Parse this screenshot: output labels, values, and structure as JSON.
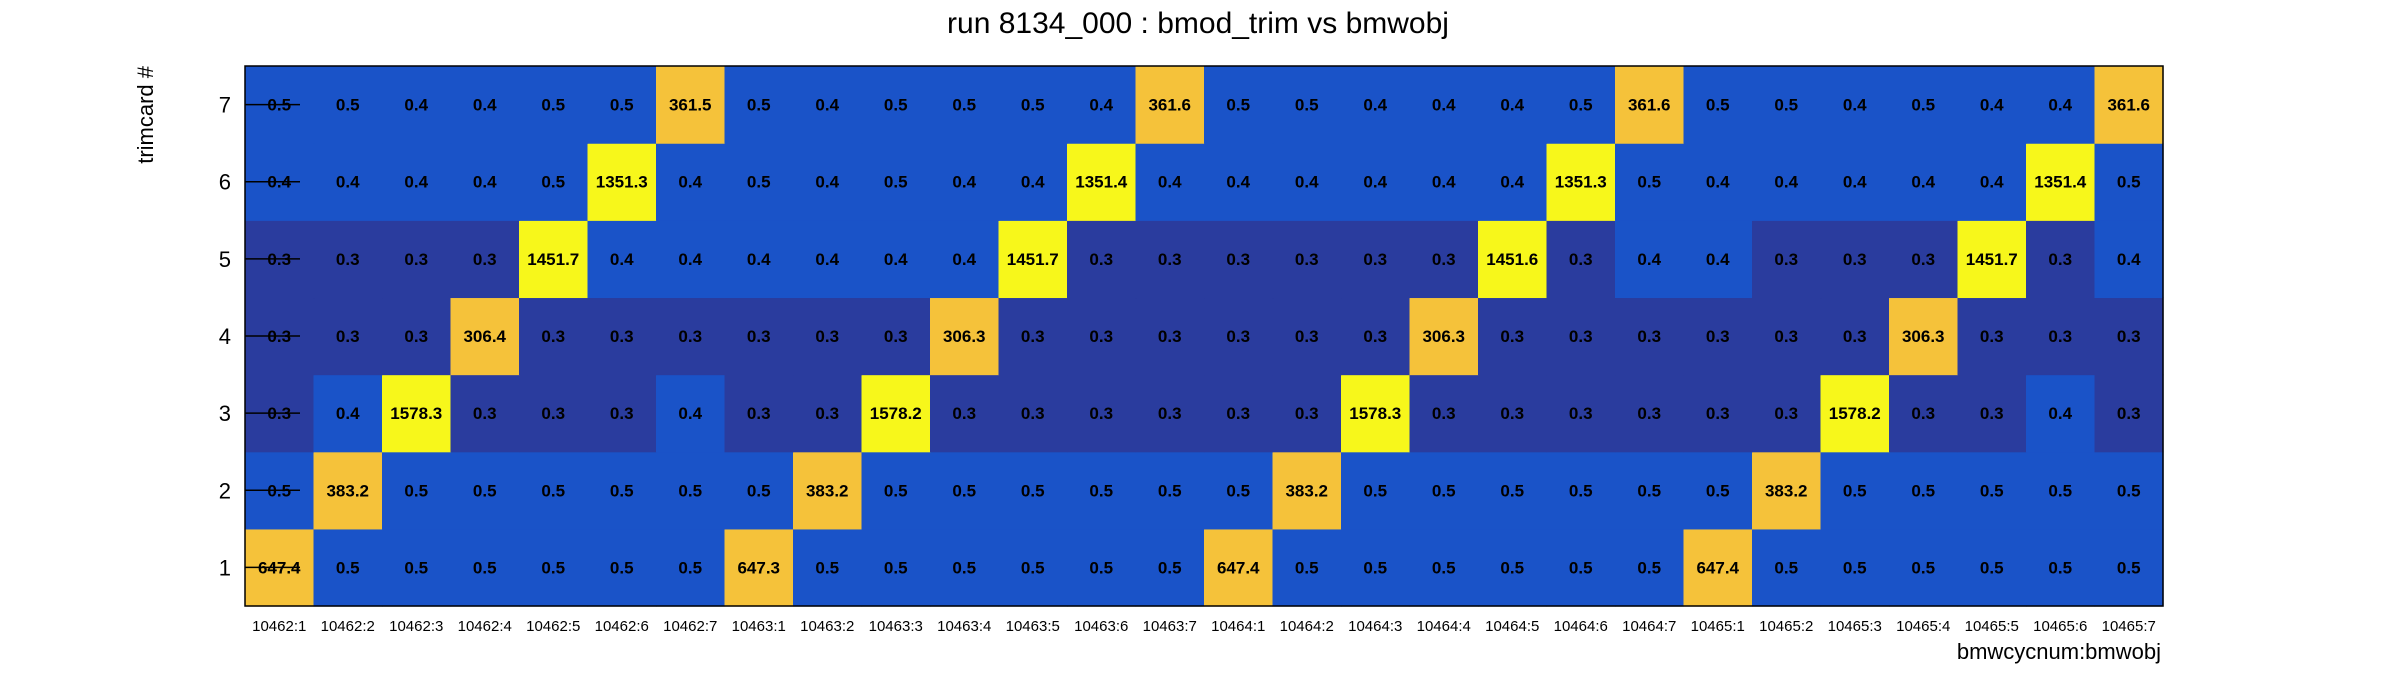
{
  "chart_data": {
    "type": "heatmap",
    "title": "run 8134_000 : bmod_trim vs bmwobj",
    "xlabel": "bmwcycnum:bmwobj",
    "ylabel": "trimcard #",
    "x_categories": [
      "10462:1",
      "10462:2",
      "10462:3",
      "10462:4",
      "10462:5",
      "10462:6",
      "10462:7",
      "10463:1",
      "10463:2",
      "10463:3",
      "10463:4",
      "10463:5",
      "10463:6",
      "10463:7",
      "10464:1",
      "10464:2",
      "10464:3",
      "10464:4",
      "10464:5",
      "10464:6",
      "10464:7",
      "10465:1",
      "10465:2",
      "10465:3",
      "10465:4",
      "10465:5",
      "10465:6",
      "10465:7"
    ],
    "y_categories": [
      "1",
      "2",
      "3",
      "4",
      "5",
      "6",
      "7"
    ],
    "values": [
      [
        "647.4",
        "0.5",
        "0.5",
        "0.5",
        "0.5",
        "0.5",
        "0.5",
        "647.3",
        "0.5",
        "0.5",
        "0.5",
        "0.5",
        "0.5",
        "0.5",
        "647.4",
        "0.5",
        "0.5",
        "0.5",
        "0.5",
        "0.5",
        "0.5",
        "647.4",
        "0.5",
        "0.5",
        "0.5",
        "0.5",
        "0.5",
        "0.5"
      ],
      [
        "0.5",
        "383.2",
        "0.5",
        "0.5",
        "0.5",
        "0.5",
        "0.5",
        "0.5",
        "383.2",
        "0.5",
        "0.5",
        "0.5",
        "0.5",
        "0.5",
        "0.5",
        "383.2",
        "0.5",
        "0.5",
        "0.5",
        "0.5",
        "0.5",
        "0.5",
        "383.2",
        "0.5",
        "0.5",
        "0.5",
        "0.5",
        "0.5"
      ],
      [
        "0.3",
        "0.4",
        "1578.3",
        "0.3",
        "0.3",
        "0.3",
        "0.4",
        "0.3",
        "0.3",
        "1578.2",
        "0.3",
        "0.3",
        "0.3",
        "0.3",
        "0.3",
        "0.3",
        "1578.3",
        "0.3",
        "0.3",
        "0.3",
        "0.3",
        "0.3",
        "0.3",
        "1578.2",
        "0.3",
        "0.3",
        "0.4",
        "0.3"
      ],
      [
        "0.3",
        "0.3",
        "0.3",
        "306.4",
        "0.3",
        "0.3",
        "0.3",
        "0.3",
        "0.3",
        "0.3",
        "306.3",
        "0.3",
        "0.3",
        "0.3",
        "0.3",
        "0.3",
        "0.3",
        "306.3",
        "0.3",
        "0.3",
        "0.3",
        "0.3",
        "0.3",
        "0.3",
        "306.3",
        "0.3",
        "0.3",
        "0.3"
      ],
      [
        "0.3",
        "0.3",
        "0.3",
        "0.3",
        "1451.7",
        "0.4",
        "0.4",
        "0.4",
        "0.4",
        "0.4",
        "0.4",
        "1451.7",
        "0.3",
        "0.3",
        "0.3",
        "0.3",
        "0.3",
        "0.3",
        "1451.6",
        "0.3",
        "0.4",
        "0.4",
        "0.3",
        "0.3",
        "0.3",
        "1451.7",
        "0.3",
        "0.4"
      ],
      [
        "0.4",
        "0.4",
        "0.4",
        "0.4",
        "0.5",
        "1351.3",
        "0.4",
        "0.5",
        "0.4",
        "0.5",
        "0.4",
        "0.4",
        "1351.4",
        "0.4",
        "0.4",
        "0.4",
        "0.4",
        "0.4",
        "0.4",
        "1351.3",
        "0.5",
        "0.4",
        "0.4",
        "0.4",
        "0.4",
        "0.4",
        "1351.4",
        "0.5"
      ],
      [
        "0.5",
        "0.5",
        "0.4",
        "0.4",
        "0.5",
        "0.5",
        "361.5",
        "0.5",
        "0.4",
        "0.5",
        "0.5",
        "0.5",
        "0.4",
        "361.6",
        "0.5",
        "0.5",
        "0.4",
        "0.4",
        "0.4",
        "0.5",
        "361.6",
        "0.5",
        "0.5",
        "0.4",
        "0.5",
        "0.4",
        "0.4",
        "361.6"
      ]
    ],
    "colors": {
      "low_blue": "#2a3c9e",
      "mid_blue": "#1a53c8",
      "orange": "#f5c23a",
      "yellow": "#f7f71b"
    }
  }
}
